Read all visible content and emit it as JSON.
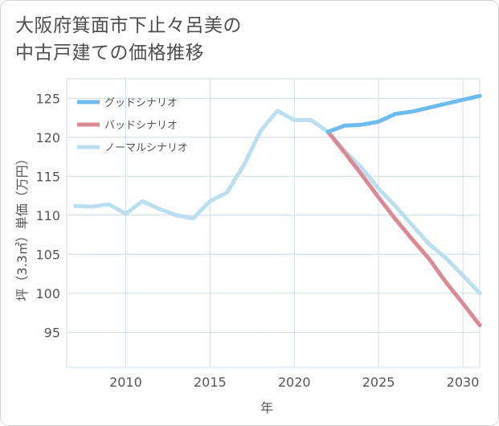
{
  "title_line1": "大阪府箕面市下止々呂美の",
  "title_line2": "中古戸建ての価格推移",
  "chart_data": {
    "type": "line",
    "xlabel": "年",
    "ylabel": "坪（3.3㎡）単価（万円）",
    "xlim": [
      2006.5,
      2031
    ],
    "ylim": [
      90.5,
      127.5
    ],
    "xticks": [
      2010,
      2015,
      2020,
      2025,
      2030
    ],
    "yticks": [
      95,
      100,
      105,
      110,
      115,
      120,
      125
    ],
    "grid": true,
    "legend_position": "top-left",
    "series": [
      {
        "name": "グッドシナリオ",
        "color": "#6dbcef",
        "x": [
          2022,
          2023,
          2024,
          2025,
          2026,
          2027,
          2028,
          2029,
          2030,
          2031
        ],
        "y": [
          120.7,
          121.5,
          121.6,
          122.0,
          123.0,
          123.3,
          123.8,
          124.3,
          124.8,
          125.3
        ]
      },
      {
        "name": "バッドシナリオ",
        "color": "#db8a93",
        "x": [
          2022,
          2023,
          2024,
          2025,
          2026,
          2027,
          2028,
          2029,
          2030,
          2031
        ],
        "y": [
          120.7,
          118.0,
          115.2,
          112.3,
          109.5,
          106.9,
          104.4,
          101.4,
          98.7,
          95.9
        ]
      },
      {
        "name": "ノーマルシナリオ",
        "color": "#b9dff0",
        "x": [
          2007,
          2008,
          2009,
          2010,
          2011,
          2012,
          2013,
          2014,
          2015,
          2016,
          2017,
          2018,
          2019,
          2020,
          2021,
          2022,
          2023,
          2024,
          2025,
          2026,
          2027,
          2028,
          2029,
          2030,
          2031
        ],
        "y": [
          111.2,
          111.1,
          111.4,
          110.2,
          111.8,
          110.8,
          110.0,
          109.6,
          111.8,
          112.9,
          116.4,
          120.8,
          123.4,
          122.2,
          122.2,
          120.7,
          118.2,
          116.1,
          113.4,
          111.2,
          108.7,
          106.3,
          104.5,
          102.3,
          100.0
        ]
      }
    ]
  }
}
